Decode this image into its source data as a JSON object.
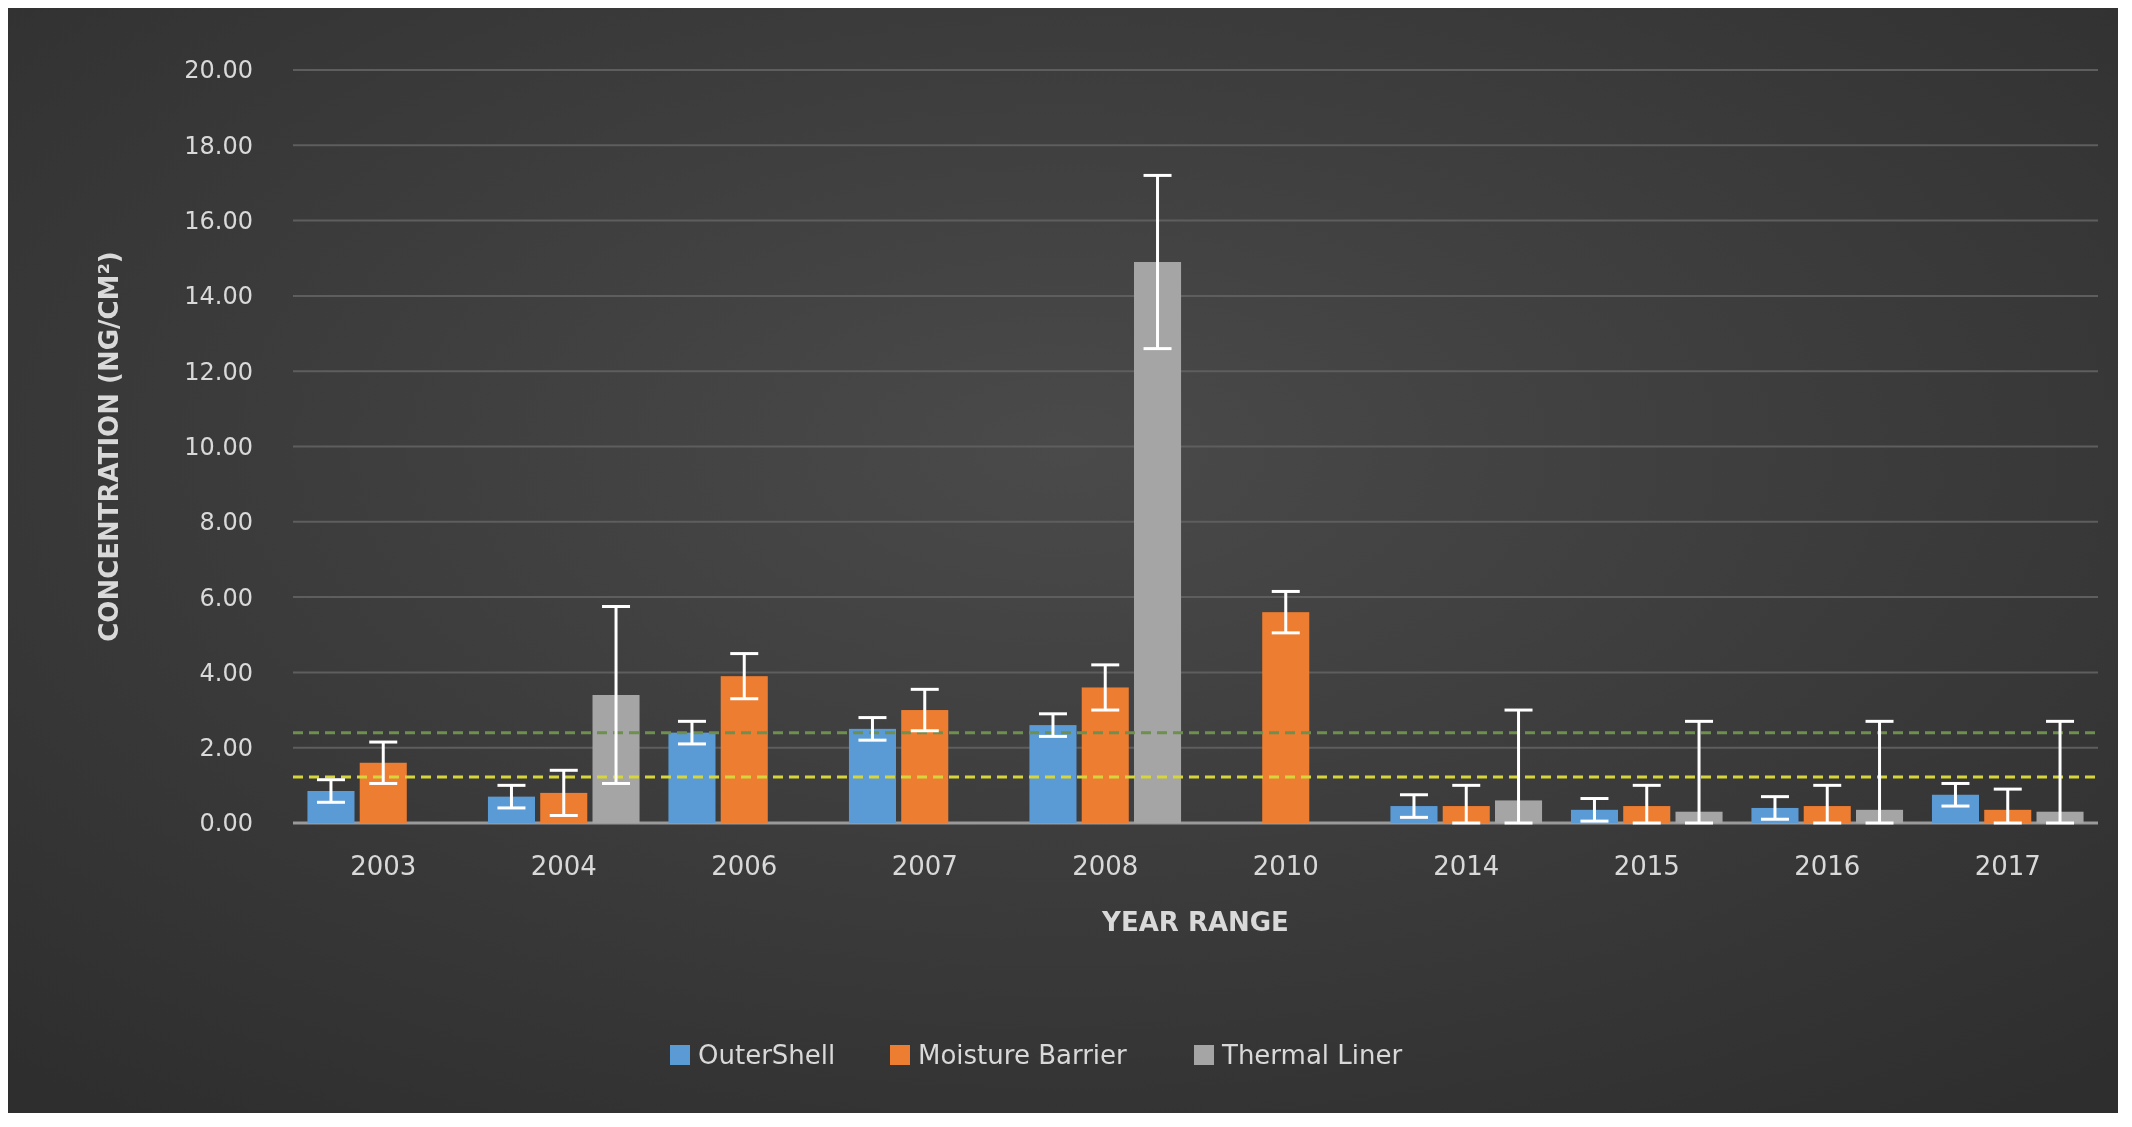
{
  "chart_data": {
    "type": "bar",
    "xlabel": "YEAR RANGE",
    "ylabel": "CONCENTRATION (NG/CM²)",
    "categories": [
      "2003",
      "2004",
      "2006",
      "2007",
      "2008",
      "2010",
      "2014",
      "2015",
      "2016",
      "2017"
    ],
    "series": [
      {
        "name": "OuterShell",
        "color": "#5b9bd5",
        "values": [
          0.85,
          0.7,
          2.4,
          2.5,
          2.6,
          null,
          0.45,
          0.35,
          0.4,
          0.75
        ],
        "errors": [
          0.3,
          0.3,
          0.3,
          0.3,
          0.3,
          null,
          0.3,
          0.3,
          0.3,
          0.3
        ]
      },
      {
        "name": "Moisture Barrier",
        "color": "#ed7d31",
        "values": [
          1.6,
          0.8,
          3.9,
          3.0,
          3.6,
          5.6,
          0.45,
          0.45,
          0.45,
          0.35
        ],
        "errors": [
          0.55,
          0.6,
          0.6,
          0.55,
          0.6,
          0.55,
          [
            0,
            1.0
          ],
          [
            0,
            1.0
          ],
          [
            0,
            1.0
          ],
          [
            0,
            0.9
          ]
        ]
      },
      {
        "name": "Thermal Liner",
        "color": "#a5a5a5",
        "values": [
          null,
          3.4,
          null,
          null,
          14.9,
          null,
          0.6,
          0.3,
          0.35,
          0.3
        ],
        "errors": [
          null,
          2.35,
          null,
          null,
          2.3,
          null,
          [
            0,
            3.0
          ],
          [
            0,
            2.7
          ],
          [
            0,
            2.7
          ],
          [
            0,
            2.7
          ]
        ]
      }
    ],
    "ylim": [
      0,
      20
    ],
    "yticks": [
      {
        "value": 0,
        "label": "0.00"
      },
      {
        "value": 2,
        "label": "2.00"
      },
      {
        "value": 4,
        "label": "4.00"
      },
      {
        "value": 6,
        "label": "6.00"
      },
      {
        "value": 8,
        "label": "8.00"
      },
      {
        "value": 10,
        "label": "10.00"
      },
      {
        "value": 12,
        "label": "12.00"
      },
      {
        "value": 14,
        "label": "14.00"
      },
      {
        "value": 16,
        "label": "16.00"
      },
      {
        "value": 18,
        "label": "18.00"
      },
      {
        "value": 20,
        "label": "20.00"
      }
    ],
    "ref_lines": [
      {
        "axis": "y",
        "value": 2.4,
        "color": "#6f8f4f",
        "line_style": "dashed"
      },
      {
        "axis": "y",
        "value": 1.22,
        "color": "#d6d63a",
        "line_style": "dashed"
      }
    ],
    "grid": "y",
    "legend": "bottom"
  }
}
